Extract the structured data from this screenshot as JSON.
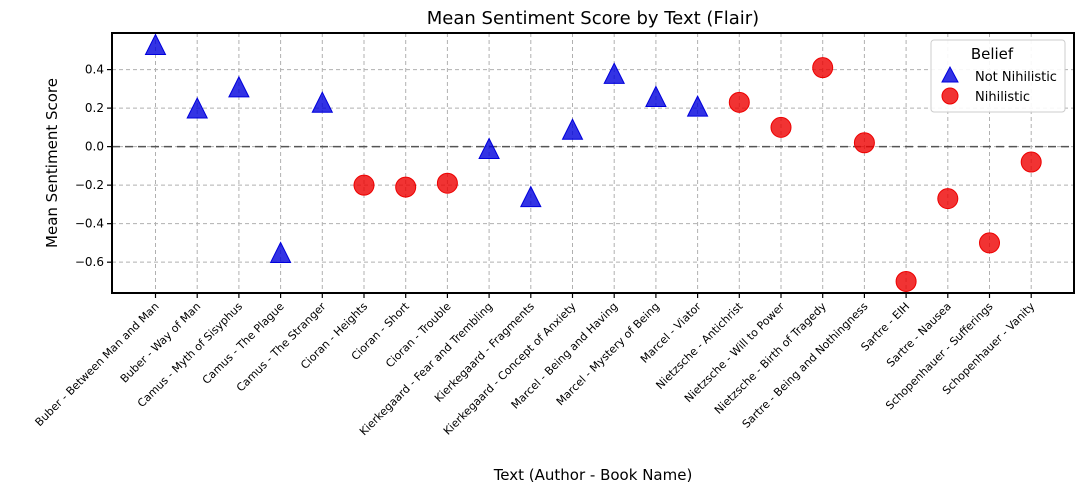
{
  "chart_data": {
    "type": "scatter",
    "title": "Mean Sentiment Score by Text (Flair)",
    "xlabel": "Text (Author - Book Name)",
    "ylabel": "Mean Sentiment Score",
    "ylim": [
      -0.76,
      0.59
    ],
    "yticks": [
      0.4,
      0.2,
      0.0,
      -0.2,
      -0.4,
      -0.6
    ],
    "ytick_labels": [
      "0.4",
      "0.2",
      "0.0",
      "−0.2",
      "−0.4",
      "−0.6"
    ],
    "grid": true,
    "reference_line": 0.0,
    "categories": [
      "Buber - Between Man and Man",
      "Buber - Way of Man",
      "Camus - Myth of Sisyphus",
      "Camus - The Plague",
      "Camus - The Stranger",
      "Cioran - Heights",
      "Cioran - Short",
      "Cioran - Trouble",
      "Kierkegaard - Fear and Trembling",
      "Kierkegaard - Fragments",
      "Kierkegaard - Concept of Anxiety",
      "Marcel - Being and Having",
      "Marcel - Mystery of Being",
      "Marcel - Viator",
      "Nietzsche - Antichrist",
      "Nietzsche - Will to Power",
      "Nietzsche - Birth of Tragedy",
      "Sartre - Being and Nothingness",
      "Sartre - EIH",
      "Sartre - Nausea",
      "Schopenhauer - Sufferings",
      "Schopenhauer - Vanity"
    ],
    "legend": {
      "title": "Belief",
      "placement": "top-right"
    },
    "series": [
      {
        "name": "Not Nihilistic",
        "marker": "triangle",
        "color": "#0000dd",
        "points": [
          {
            "x": "Buber - Between Man and Man",
            "y": 0.52
          },
          {
            "x": "Buber - Way of Man",
            "y": 0.19
          },
          {
            "x": "Camus - Myth of Sisyphus",
            "y": 0.3
          },
          {
            "x": "Camus - The Plague",
            "y": -0.56
          },
          {
            "x": "Camus - The Stranger",
            "y": 0.22
          },
          {
            "x": "Kierkegaard - Fear and Trembling",
            "y": -0.02
          },
          {
            "x": "Kierkegaard - Fragments",
            "y": -0.27
          },
          {
            "x": "Kierkegaard - Concept of Anxiety",
            "y": 0.08
          },
          {
            "x": "Marcel - Being and Having",
            "y": 0.37
          },
          {
            "x": "Marcel - Mystery of Being",
            "y": 0.25
          },
          {
            "x": "Marcel - Viator",
            "y": 0.2
          }
        ]
      },
      {
        "name": "Nihilistic",
        "marker": "circle",
        "color": "#ee0000",
        "points": [
          {
            "x": "Cioran - Heights",
            "y": -0.2
          },
          {
            "x": "Cioran - Short",
            "y": -0.21
          },
          {
            "x": "Cioran - Trouble",
            "y": -0.19
          },
          {
            "x": "Nietzsche - Antichrist",
            "y": 0.23
          },
          {
            "x": "Nietzsche - Will to Power",
            "y": 0.1
          },
          {
            "x": "Nietzsche - Birth of Tragedy",
            "y": 0.41
          },
          {
            "x": "Sartre - Being and Nothingness",
            "y": 0.02
          },
          {
            "x": "Sartre - EIH",
            "y": -0.7
          },
          {
            "x": "Sartre - Nausea",
            "y": -0.27
          },
          {
            "x": "Schopenhauer - Sufferings",
            "y": -0.5
          },
          {
            "x": "Schopenhauer - Vanity",
            "y": -0.08
          }
        ]
      }
    ]
  }
}
